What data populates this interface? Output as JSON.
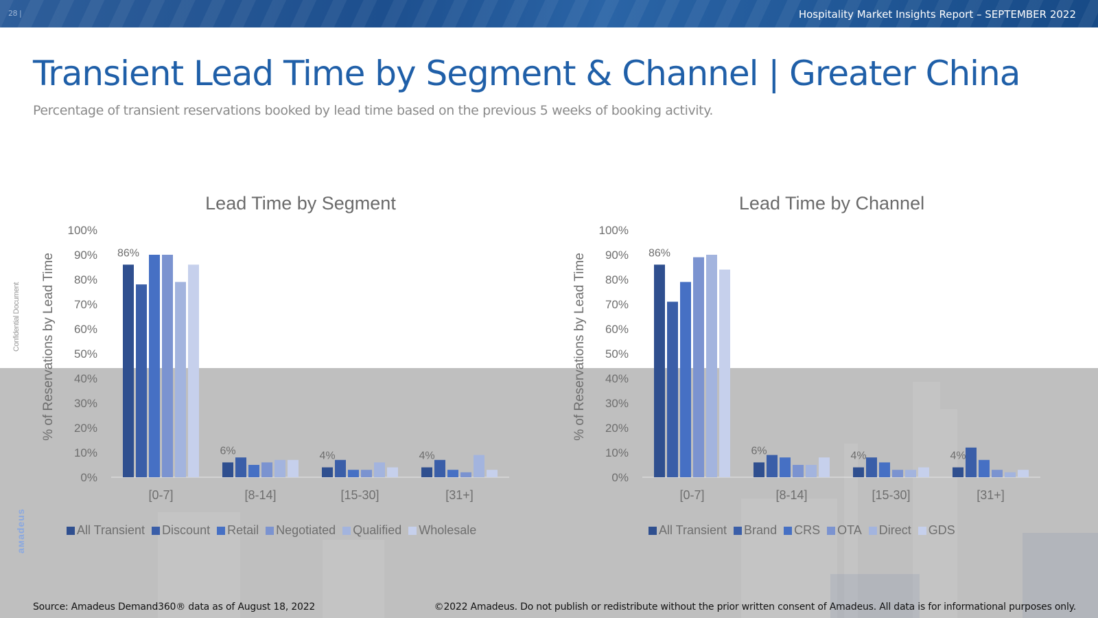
{
  "header": {
    "page_number": "28 |",
    "report_title": "Hospitality Market Insights Report – SEPTEMBER 2022"
  },
  "page": {
    "title": "Transient Lead Time by Segment & Channel | Greater China",
    "subtitle": "Percentage of transient reservations booked by lead time based on the previous 5 weeks of booking activity."
  },
  "side": {
    "confidential": "Confidential Document",
    "brand": "aмadeus"
  },
  "footer": {
    "source": "Source: Amadeus Demand360® data as of August 18, 2022",
    "copyright": "©2022 Amadeus. Do not publish or redistribute without the prior written consent of Amadeus. All data is for informational purposes only."
  },
  "chart_data": [
    {
      "type": "bar",
      "title": "Lead Time by Segment",
      "xlabel": "",
      "ylabel": "% of Reservations by Lead Time",
      "ylim": [
        0,
        100
      ],
      "yticks": [
        "0%",
        "10%",
        "20%",
        "30%",
        "40%",
        "50%",
        "60%",
        "70%",
        "80%",
        "90%",
        "100%"
      ],
      "categories": [
        "[0-7]",
        "[8-14]",
        "[15-30]",
        "[31+]"
      ],
      "series": [
        {
          "name": "All Transient",
          "color": "#2f4f8f",
          "values": [
            86,
            6,
            4,
            4
          ]
        },
        {
          "name": "Discount",
          "color": "#3a5ea8",
          "values": [
            78,
            8,
            7,
            7
          ]
        },
        {
          "name": "Retail",
          "color": "#4670c4",
          "values": [
            90,
            5,
            3,
            3
          ]
        },
        {
          "name": "Negotiated",
          "color": "#7b93d0",
          "values": [
            90,
            6,
            3,
            2
          ]
        },
        {
          "name": "Qualified",
          "color": "#a3b4de",
          "values": [
            79,
            7,
            6,
            9
          ]
        },
        {
          "name": "Wholesale",
          "color": "#c6d0ec",
          "values": [
            86,
            7,
            4,
            3
          ]
        }
      ],
      "data_labels": [
        {
          "category": "[0-7]",
          "text": "86%"
        },
        {
          "category": "[8-14]",
          "text": "6%"
        },
        {
          "category": "[15-30]",
          "text": "4%"
        },
        {
          "category": "[31+]",
          "text": "4%"
        }
      ]
    },
    {
      "type": "bar",
      "title": "Lead Time by Channel",
      "xlabel": "",
      "ylabel": "% of Reservations by Lead Time",
      "ylim": [
        0,
        100
      ],
      "yticks": [
        "0%",
        "10%",
        "20%",
        "30%",
        "40%",
        "50%",
        "60%",
        "70%",
        "80%",
        "90%",
        "100%"
      ],
      "categories": [
        "[0-7]",
        "[8-14]",
        "[15-30]",
        "[31+]"
      ],
      "series": [
        {
          "name": "All Transient",
          "color": "#2f4f8f",
          "values": [
            86,
            6,
            4,
            4
          ]
        },
        {
          "name": "Brand",
          "color": "#3a5ea8",
          "values": [
            71,
            9,
            8,
            12
          ]
        },
        {
          "name": "CRS",
          "color": "#4670c4",
          "values": [
            79,
            8,
            6,
            7
          ]
        },
        {
          "name": "OTA",
          "color": "#7b93d0",
          "values": [
            89,
            5,
            3,
            3
          ]
        },
        {
          "name": "Direct",
          "color": "#a3b4de",
          "values": [
            90,
            5,
            3,
            2
          ]
        },
        {
          "name": "GDS",
          "color": "#c6d0ec",
          "values": [
            84,
            8,
            4,
            3
          ]
        }
      ],
      "data_labels": [
        {
          "category": "[0-7]",
          "text": "86%"
        },
        {
          "category": "[8-14]",
          "text": "6%"
        },
        {
          "category": "[15-30]",
          "text": "4%"
        },
        {
          "category": "[31+]",
          "text": "4%"
        }
      ]
    }
  ]
}
